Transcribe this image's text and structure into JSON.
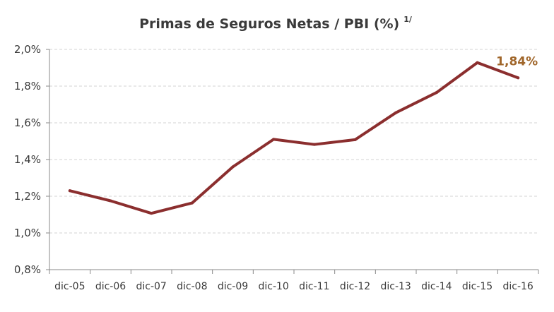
{
  "chart_data": {
    "type": "line",
    "title": "Primas de Seguros Netas / PBI (%)",
    "title_footnote": "1/",
    "categories": [
      "dic-05",
      "dic-06",
      "dic-07",
      "dic-08",
      "dic-09",
      "dic-10",
      "dic-11",
      "dic-12",
      "dic-13",
      "dic-14",
      "dic-15",
      "dic-16"
    ],
    "series": [
      {
        "values": [
          1.23,
          1.175,
          1.107,
          1.163,
          1.36,
          1.51,
          1.482,
          1.508,
          1.655,
          1.765,
          1.928,
          1.845
        ],
        "color": "#8b2e2e"
      }
    ],
    "ylim": [
      0.8,
      2.0
    ],
    "yticks": [
      0.8,
      1.0,
      1.2,
      1.4,
      1.6,
      1.8,
      2.0
    ],
    "ytick_labels": [
      "0,8%",
      "1,0%",
      "1,2%",
      "1,4%",
      "1,6%",
      "1,8%",
      "2,0%"
    ],
    "grid": true,
    "annotation": {
      "text": "1,84%",
      "category": "dic-16",
      "color": "#a0662a"
    }
  }
}
